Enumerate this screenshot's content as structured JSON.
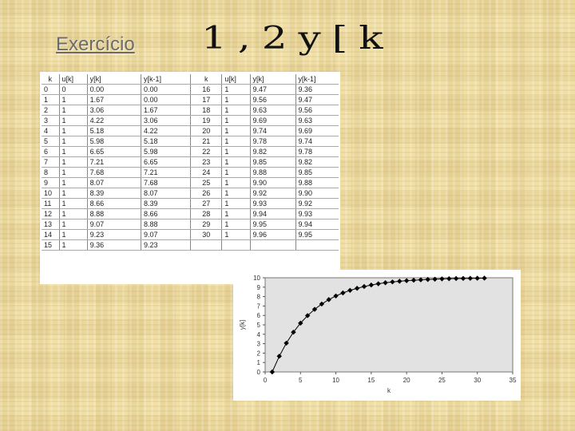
{
  "slide": {
    "title": "Exercício",
    "heading": "1,2y[k"
  },
  "table": {
    "headers": [
      "k",
      "u[k]",
      "y[k]",
      "y[k-1]",
      "k",
      "u[k]",
      "y[k]",
      "y[k-1]"
    ],
    "rows": [
      [
        "0",
        "0",
        "0.00",
        "0.00",
        "16",
        "1",
        "9.47",
        "9.36"
      ],
      [
        "1",
        "1",
        "1.67",
        "0.00",
        "17",
        "1",
        "9.56",
        "9.47"
      ],
      [
        "2",
        "1",
        "3.06",
        "1.67",
        "18",
        "1",
        "9.63",
        "9.56"
      ],
      [
        "3",
        "1",
        "4.22",
        "3.06",
        "19",
        "1",
        "9.69",
        "9.63"
      ],
      [
        "4",
        "1",
        "5.18",
        "4.22",
        "20",
        "1",
        "9.74",
        "9.69"
      ],
      [
        "5",
        "1",
        "5.98",
        "5.18",
        "21",
        "1",
        "9.78",
        "9.74"
      ],
      [
        "6",
        "1",
        "6.65",
        "5.98",
        "22",
        "1",
        "9.82",
        "9.78"
      ],
      [
        "7",
        "1",
        "7.21",
        "6.65",
        "23",
        "1",
        "9.85",
        "9.82"
      ],
      [
        "8",
        "1",
        "7.68",
        "7.21",
        "24",
        "1",
        "9.88",
        "9.85"
      ],
      [
        "9",
        "1",
        "8.07",
        "7.68",
        "25",
        "1",
        "9.90",
        "9.88"
      ],
      [
        "10",
        "1",
        "8.39",
        "8.07",
        "26",
        "1",
        "9.92",
        "9.90"
      ],
      [
        "11",
        "1",
        "8.66",
        "8.39",
        "27",
        "1",
        "9.93",
        "9.92"
      ],
      [
        "12",
        "1",
        "8.88",
        "8.66",
        "28",
        "1",
        "9.94",
        "9.93"
      ],
      [
        "13",
        "1",
        "9.07",
        "8.88",
        "29",
        "1",
        "9.95",
        "9.94"
      ],
      [
        "14",
        "1",
        "9.23",
        "9.07",
        "30",
        "1",
        "9.96",
        "9.95"
      ],
      [
        "15",
        "1",
        "9.36",
        "9.23",
        "",
        "",
        "",
        ""
      ]
    ]
  },
  "chart_data": {
    "type": "line",
    "xlabel": "k",
    "ylabel": "y[k]",
    "xlim": [
      0,
      35
    ],
    "ylim": [
      0,
      10
    ],
    "xticks": [
      0,
      5,
      10,
      15,
      20,
      25,
      30,
      35
    ],
    "yticks": [
      0,
      1,
      2,
      3,
      4,
      5,
      6,
      7,
      8,
      9,
      10
    ],
    "grid": false,
    "background": "#e2e2e2",
    "series": [
      {
        "marker": "diamond",
        "color": "#000000",
        "x": [
          1,
          2,
          3,
          4,
          5,
          6,
          7,
          8,
          9,
          10,
          11,
          12,
          13,
          14,
          15,
          16,
          17,
          18,
          19,
          20,
          21,
          22,
          23,
          24,
          25,
          26,
          27,
          28,
          29,
          30,
          31
        ],
        "y": [
          0.0,
          1.67,
          3.06,
          4.22,
          5.18,
          5.98,
          6.65,
          7.21,
          7.68,
          8.07,
          8.39,
          8.66,
          8.88,
          9.07,
          9.23,
          9.36,
          9.47,
          9.56,
          9.63,
          9.69,
          9.74,
          9.78,
          9.82,
          9.85,
          9.88,
          9.9,
          9.92,
          9.93,
          9.94,
          9.95,
          9.96
        ]
      }
    ]
  }
}
